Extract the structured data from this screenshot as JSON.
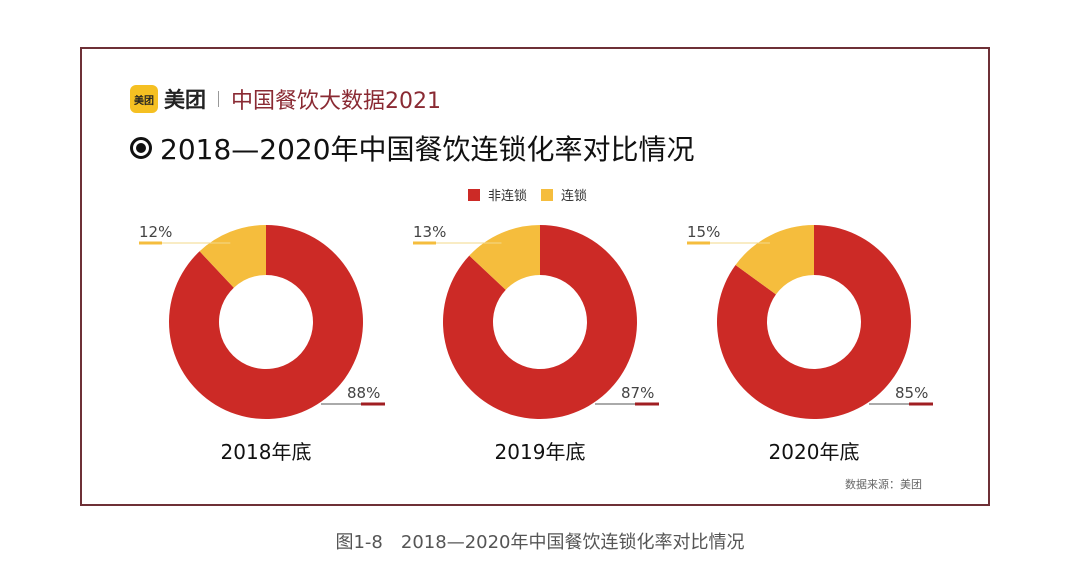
{
  "brand": {
    "logo_text": "美团",
    "name": "美团",
    "report": "中国餐饮大数据2021"
  },
  "chart_data": {
    "type": "pie",
    "donut": true,
    "title": "2018—2020年中国餐饮连锁化率对比情况",
    "legend": [
      {
        "name": "非连锁",
        "color": "#cc2a26"
      },
      {
        "name": "连锁",
        "color": "#f5bd3d"
      }
    ],
    "legend_position": "top-center",
    "charts": [
      {
        "label": "2018年底",
        "values": [
          {
            "name": "非连锁",
            "value": 88,
            "text": "88%"
          },
          {
            "name": "连锁",
            "value": 12,
            "text": "12%"
          }
        ]
      },
      {
        "label": "2019年底",
        "values": [
          {
            "name": "非连锁",
            "value": 87,
            "text": "87%"
          },
          {
            "name": "连锁",
            "value": 13,
            "text": "13%"
          }
        ]
      },
      {
        "label": "2020年底",
        "values": [
          {
            "name": "非连锁",
            "value": 85,
            "text": "85%"
          },
          {
            "name": "连锁",
            "value": 15,
            "text": "15%"
          }
        ]
      }
    ]
  },
  "source": "数据来源：美团",
  "caption": "图1-8　2018—2020年中国餐饮连锁化率对比情况"
}
